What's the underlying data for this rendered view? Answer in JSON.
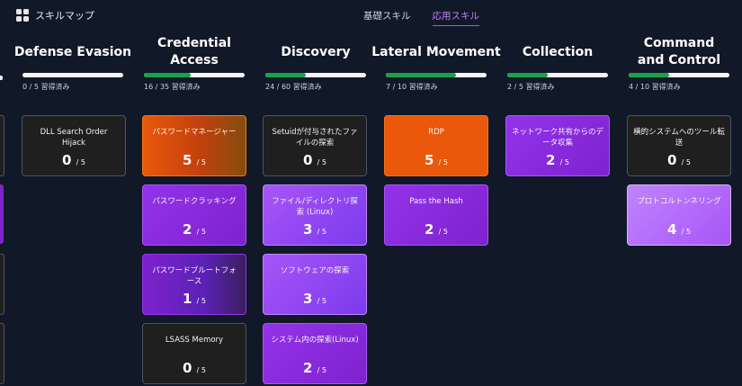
{
  "app": {
    "title": "スキルマップ"
  },
  "tabs": [
    {
      "label": "基礎スキル"
    },
    {
      "label": "応用スキル"
    }
  ],
  "columns": [
    {
      "title": "Defense Evasion",
      "progress": 0.0,
      "acquired": "0 / 5 習得済み",
      "skills": [
        {
          "name": "DLL Search Order Hijack",
          "level": "0",
          "max": "/ 5"
        }
      ]
    },
    {
      "title": "Credential Access",
      "progress": 0.46,
      "acquired": "16 / 35 習得済み",
      "skills": [
        {
          "name": "パスワードマネージャー",
          "level": "5",
          "max": "/ 5"
        },
        {
          "name": "パスワードクラッキング",
          "level": "2",
          "max": "/ 5"
        },
        {
          "name": "パスワードブルートフォース",
          "level": "1",
          "max": "/ 5"
        },
        {
          "name": "LSASS Memory",
          "level": "0",
          "max": "/ 5"
        }
      ]
    },
    {
      "title": "Discovery",
      "progress": 0.4,
      "acquired": "24 / 60 習得済み",
      "skills": [
        {
          "name": "Setuidが付与されたファイルの探索",
          "level": "0",
          "max": "/ 5"
        },
        {
          "name": "ファイル/ディレクトリ探索 (Linux)",
          "level": "3",
          "max": "/ 5"
        },
        {
          "name": "ソフトウェアの探索",
          "level": "3",
          "max": "/ 5"
        },
        {
          "name": "システム内の探索(Linux)",
          "level": "2",
          "max": "/ 5"
        }
      ]
    },
    {
      "title": "Lateral Movement",
      "progress": 0.7,
      "acquired": "7 / 10 習得済み",
      "skills": [
        {
          "name": "RDP",
          "level": "5",
          "max": "/ 5"
        },
        {
          "name": "Pass the Hash",
          "level": "2",
          "max": "/ 5"
        }
      ]
    },
    {
      "title": "Collection",
      "progress": 0.4,
      "acquired": "2 / 5 習得済み",
      "skills": [
        {
          "name": "ネットワーク共有からのデータ収集",
          "level": "2",
          "max": "/ 5"
        }
      ]
    },
    {
      "title": "Command and Control",
      "progress": 0.4,
      "acquired": "4 / 10 習得済み",
      "skills": [
        {
          "name": "横的システムへのツール転送",
          "level": "0",
          "max": "/ 5"
        },
        {
          "name": "プロトコルトンネリング",
          "level": "4",
          "max": "/ 5"
        }
      ]
    }
  ]
}
